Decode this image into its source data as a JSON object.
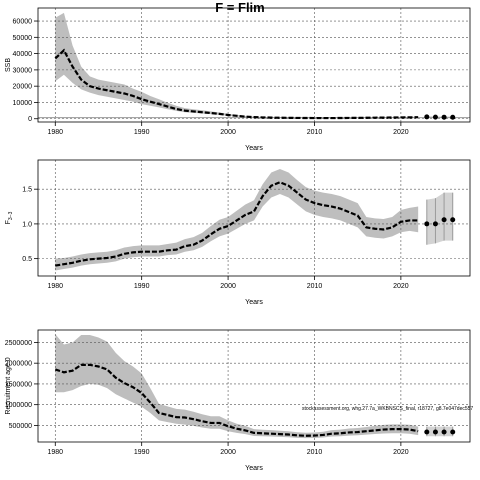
{
  "figure": {
    "title": "F = Flim",
    "watermark": "stockassessment.org, whg.27.7a_WKBNSCS_final, r18727, g8.7e047dec557"
  },
  "colors": {
    "band": "#bebebe",
    "line": "#000000",
    "grid": "#555555",
    "hline": "#9a9a9a"
  },
  "chart_data": [
    {
      "type": "area",
      "name": "ssb-panel",
      "xlabel": "Years",
      "ylabel": "SSB",
      "xlim": [
        1978,
        2028
      ],
      "ylim": [
        -2000,
        68000
      ],
      "xticks": [
        1980,
        1990,
        2000,
        2010,
        2020
      ],
      "yticks": [
        0,
        10000,
        20000,
        30000,
        40000,
        50000,
        60000
      ],
      "grid": true,
      "hline": 700,
      "years": [
        1980,
        1981,
        1982,
        1983,
        1984,
        1985,
        1986,
        1987,
        1988,
        1989,
        1990,
        1991,
        1992,
        1993,
        1994,
        1995,
        1996,
        1997,
        1998,
        1999,
        2000,
        2001,
        2002,
        2003,
        2004,
        2005,
        2006,
        2007,
        2008,
        2009,
        2010,
        2011,
        2012,
        2013,
        2014,
        2015,
        2016,
        2017,
        2018,
        2019,
        2020,
        2021,
        2022
      ],
      "estimate": [
        37000,
        42000,
        32000,
        24000,
        20000,
        18500,
        17500,
        16500,
        15500,
        14000,
        12000,
        10500,
        9000,
        7500,
        6000,
        5000,
        4500,
        4000,
        3500,
        3000,
        2300,
        1800,
        1300,
        1000,
        800,
        700,
        600,
        550,
        500,
        450,
        420,
        420,
        420,
        450,
        500,
        550,
        600,
        650,
        700,
        750,
        800,
        850,
        950
      ],
      "lower": [
        23000,
        27000,
        22000,
        18000,
        16000,
        14500,
        13500,
        12500,
        11500,
        10500,
        9000,
        8000,
        7000,
        5800,
        4800,
        4000,
        3600,
        3200,
        2800,
        2400,
        1800,
        1400,
        1000,
        800,
        600,
        500,
        430,
        400,
        360,
        330,
        300,
        300,
        300,
        330,
        360,
        400,
        430,
        470,
        500,
        540,
        580,
        620,
        700
      ],
      "upper": [
        62000,
        65000,
        45000,
        32000,
        26000,
        24000,
        23000,
        22000,
        21000,
        18500,
        16500,
        14000,
        12000,
        9800,
        8000,
        6500,
        5800,
        5200,
        4500,
        3800,
        3000,
        2400,
        1700,
        1300,
        1100,
        950,
        800,
        750,
        680,
        620,
        580,
        580,
        580,
        620,
        680,
        740,
        800,
        870,
        940,
        1000,
        1070,
        1130,
        1250
      ],
      "forecast": {
        "years": [
          2023,
          2024,
          2025,
          2026
        ],
        "values": [
          1150,
          1000,
          950,
          920
        ],
        "lower": [
          800,
          700,
          650,
          600
        ],
        "upper": [
          1600,
          1450,
          1400,
          1350
        ]
      }
    },
    {
      "type": "area",
      "name": "f-panel",
      "xlabel": "Years",
      "ylabel": "F",
      "ylabel_subscript": "3−3",
      "xlim": [
        1978,
        2028
      ],
      "ylim": [
        0.25,
        1.92
      ],
      "xticks": [
        1980,
        1990,
        2000,
        2010,
        2020
      ],
      "yticks": [
        0.5,
        1.0,
        1.5
      ],
      "ytick_labels": [
        "0.5",
        "1.0",
        "1.5"
      ],
      "grid": true,
      "years": [
        1980,
        1981,
        1982,
        1983,
        1984,
        1985,
        1986,
        1987,
        1988,
        1989,
        1990,
        1991,
        1992,
        1993,
        1994,
        1995,
        1996,
        1997,
        1998,
        1999,
        2000,
        2001,
        2002,
        2003,
        2004,
        2005,
        2006,
        2007,
        2008,
        2009,
        2010,
        2011,
        2012,
        2013,
        2014,
        2015,
        2016,
        2017,
        2018,
        2019,
        2020,
        2021,
        2022
      ],
      "estimate": [
        0.4,
        0.42,
        0.44,
        0.47,
        0.49,
        0.5,
        0.51,
        0.53,
        0.57,
        0.59,
        0.6,
        0.6,
        0.6,
        0.62,
        0.63,
        0.68,
        0.7,
        0.76,
        0.85,
        0.93,
        0.97,
        1.05,
        1.13,
        1.18,
        1.4,
        1.55,
        1.6,
        1.55,
        1.45,
        1.35,
        1.3,
        1.27,
        1.25,
        1.22,
        1.17,
        1.12,
        0.95,
        0.93,
        0.92,
        0.95,
        1.03,
        1.05,
        1.05
      ],
      "lower": [
        0.33,
        0.35,
        0.37,
        0.4,
        0.42,
        0.43,
        0.44,
        0.46,
        0.5,
        0.52,
        0.53,
        0.53,
        0.53,
        0.55,
        0.56,
        0.6,
        0.62,
        0.67,
        0.75,
        0.82,
        0.86,
        0.93,
        1.0,
        1.05,
        1.25,
        1.38,
        1.43,
        1.38,
        1.28,
        1.18,
        1.13,
        1.1,
        1.08,
        1.05,
        1.0,
        0.95,
        0.82,
        0.8,
        0.79,
        0.82,
        0.88,
        0.9,
        0.88
      ],
      "upper": [
        0.5,
        0.51,
        0.53,
        0.56,
        0.58,
        0.59,
        0.6,
        0.62,
        0.66,
        0.68,
        0.69,
        0.69,
        0.69,
        0.71,
        0.73,
        0.78,
        0.81,
        0.87,
        0.97,
        1.06,
        1.1,
        1.19,
        1.28,
        1.34,
        1.57,
        1.74,
        1.79,
        1.74,
        1.63,
        1.53,
        1.48,
        1.45,
        1.43,
        1.4,
        1.35,
        1.3,
        1.1,
        1.08,
        1.07,
        1.1,
        1.2,
        1.23,
        1.25
      ],
      "forecast": {
        "years": [
          2023,
          2024,
          2025,
          2026
        ],
        "values": [
          1.0,
          1.0,
          1.06,
          1.06
        ],
        "lower": [
          0.7,
          0.72,
          0.76,
          0.76
        ],
        "upper": [
          1.35,
          1.37,
          1.45,
          1.45
        ]
      }
    },
    {
      "type": "area",
      "name": "recruitment-panel",
      "xlabel": "Years",
      "ylabel": "Recruitment age 0",
      "xlim": [
        1978,
        2028
      ],
      "ylim": [
        100000,
        2800000
      ],
      "xticks": [
        1980,
        1990,
        2000,
        2010,
        2020
      ],
      "yticks": [
        500000,
        1000000,
        1500000,
        2000000,
        2500000
      ],
      "grid": true,
      "years": [
        1980,
        1981,
        1982,
        1983,
        1984,
        1985,
        1986,
        1987,
        1988,
        1989,
        1990,
        1991,
        1992,
        1993,
        1994,
        1995,
        1996,
        1997,
        1998,
        1999,
        2000,
        2001,
        2002,
        2003,
        2004,
        2005,
        2006,
        2007,
        2008,
        2009,
        2010,
        2011,
        2012,
        2013,
        2014,
        2015,
        2016,
        2017,
        2018,
        2019,
        2020,
        2021,
        2022
      ],
      "estimate": [
        1850000,
        1780000,
        1820000,
        1960000,
        1960000,
        1920000,
        1850000,
        1650000,
        1520000,
        1420000,
        1280000,
        1050000,
        800000,
        750000,
        700000,
        690000,
        650000,
        600000,
        560000,
        560000,
        480000,
        420000,
        380000,
        320000,
        310000,
        300000,
        290000,
        280000,
        260000,
        250000,
        255000,
        270000,
        300000,
        310000,
        330000,
        340000,
        360000,
        380000,
        400000,
        410000,
        410000,
        400000,
        360000
      ],
      "lower": [
        1300000,
        1300000,
        1350000,
        1450000,
        1500000,
        1480000,
        1400000,
        1250000,
        1150000,
        1050000,
        950000,
        800000,
        620000,
        580000,
        540000,
        520000,
        490000,
        450000,
        420000,
        420000,
        360000,
        320000,
        290000,
        245000,
        240000,
        232000,
        224000,
        215000,
        200000,
        192000,
        196000,
        208000,
        232000,
        240000,
        255000,
        262000,
        278000,
        292000,
        305000,
        312000,
        312000,
        300000,
        265000
      ],
      "upper": [
        2700000,
        2450000,
        2500000,
        2680000,
        2680000,
        2620000,
        2520000,
        2250000,
        2050000,
        1920000,
        1750000,
        1400000,
        1020000,
        960000,
        900000,
        880000,
        830000,
        770000,
        720000,
        720000,
        620000,
        540000,
        490000,
        410000,
        395000,
        385000,
        372000,
        360000,
        335000,
        322000,
        330000,
        348000,
        385000,
        398000,
        425000,
        438000,
        462000,
        488000,
        512000,
        525000,
        525000,
        515000,
        470000
      ],
      "forecast": {
        "years": [
          2023,
          2024,
          2025,
          2026
        ],
        "values": [
          340000,
          340000,
          340000,
          340000
        ],
        "lower": [
          240000,
          240000,
          240000,
          240000
        ],
        "upper": [
          470000,
          470000,
          470000,
          470000
        ]
      }
    }
  ]
}
